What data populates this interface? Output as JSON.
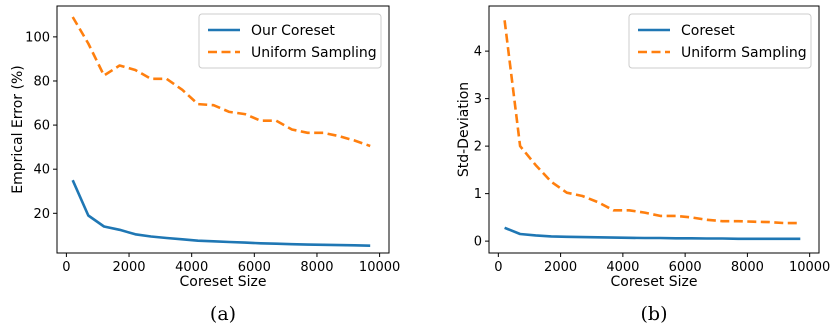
{
  "chart_data": [
    {
      "type": "line",
      "caption": "(a)",
      "xlabel": "Coreset Size",
      "ylabel": "Emprical Error (%)",
      "xlim": [
        -300,
        10300
      ],
      "ylim": [
        2,
        114
      ],
      "xticks": [
        0,
        2000,
        4000,
        6000,
        8000,
        10000
      ],
      "yticks": [
        20,
        40,
        60,
        80,
        100
      ],
      "legend_position": "top-right",
      "x": [
        200,
        700,
        1200,
        1700,
        2200,
        2700,
        3200,
        3700,
        4200,
        4700,
        5200,
        5700,
        6200,
        6700,
        7200,
        7700,
        8200,
        8700,
        9200,
        9700
      ],
      "series": [
        {
          "name": "Our Coreset",
          "style": "solid",
          "color": "#1f77b4",
          "values": [
            35.0,
            19.0,
            14.0,
            12.5,
            10.5,
            9.5,
            8.8,
            8.2,
            7.6,
            7.3,
            7.0,
            6.7,
            6.4,
            6.2,
            6.0,
            5.8,
            5.7,
            5.6,
            5.5,
            5.3
          ]
        },
        {
          "name": "Uniform Sampling",
          "style": "dashed",
          "color": "#ff7f0e",
          "values": [
            109.0,
            97.0,
            82.5,
            87.0,
            85.0,
            81.0,
            81.0,
            76.0,
            69.5,
            69.0,
            66.0,
            65.0,
            62.0,
            62.0,
            58.0,
            56.5,
            56.5,
            55.0,
            53.0,
            50.5
          ]
        }
      ]
    },
    {
      "type": "line",
      "caption": "(b)",
      "xlabel": "Coreset Size",
      "ylabel": "Std-Deviation",
      "xlim": [
        -300,
        10300
      ],
      "ylim": [
        -0.25,
        4.95
      ],
      "xticks": [
        0,
        2000,
        4000,
        6000,
        8000,
        10000
      ],
      "yticks": [
        0,
        1,
        2,
        3,
        4
      ],
      "legend_position": "top-right",
      "x": [
        200,
        700,
        1200,
        1700,
        2200,
        2700,
        3200,
        3700,
        4200,
        4700,
        5200,
        5700,
        6200,
        6700,
        7200,
        7700,
        8200,
        8700,
        9200,
        9700
      ],
      "series": [
        {
          "name": "Coreset",
          "style": "solid",
          "color": "#1f77b4",
          "values": [
            0.28,
            0.15,
            0.12,
            0.1,
            0.09,
            0.085,
            0.08,
            0.075,
            0.07,
            0.065,
            0.065,
            0.06,
            0.06,
            0.055,
            0.055,
            0.05,
            0.05,
            0.05,
            0.05,
            0.05
          ]
        },
        {
          "name": "Uniform Sampling",
          "style": "dashed",
          "color": "#ff7f0e",
          "values": [
            4.65,
            2.0,
            1.6,
            1.25,
            1.02,
            0.95,
            0.82,
            0.65,
            0.65,
            0.6,
            0.53,
            0.53,
            0.5,
            0.45,
            0.42,
            0.42,
            0.41,
            0.4,
            0.38,
            0.38
          ]
        }
      ]
    }
  ]
}
